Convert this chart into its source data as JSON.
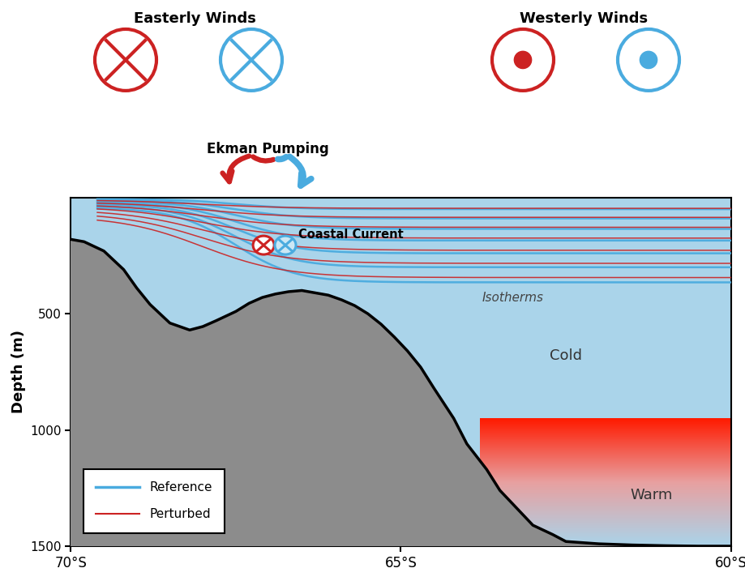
{
  "bg_color": "#ffffff",
  "ocean_color": "#aad4ea",
  "bathymetry_color": "#8c8c8c",
  "ref_color": "#4aabdf",
  "pert_color": "#cc2222",
  "ylabel": "Depth (m)",
  "easterly_label": "Easterly Winds",
  "westerly_label": "Westerly Winds",
  "ekman_label": "Ekman Pumping",
  "coastal_label": "Coastal Current",
  "isotherm_label": "Isotherms",
  "cold_label": "Cold",
  "warm_label": "Warm",
  "legend_ref": "Reference",
  "legend_pert": "Perturbed"
}
